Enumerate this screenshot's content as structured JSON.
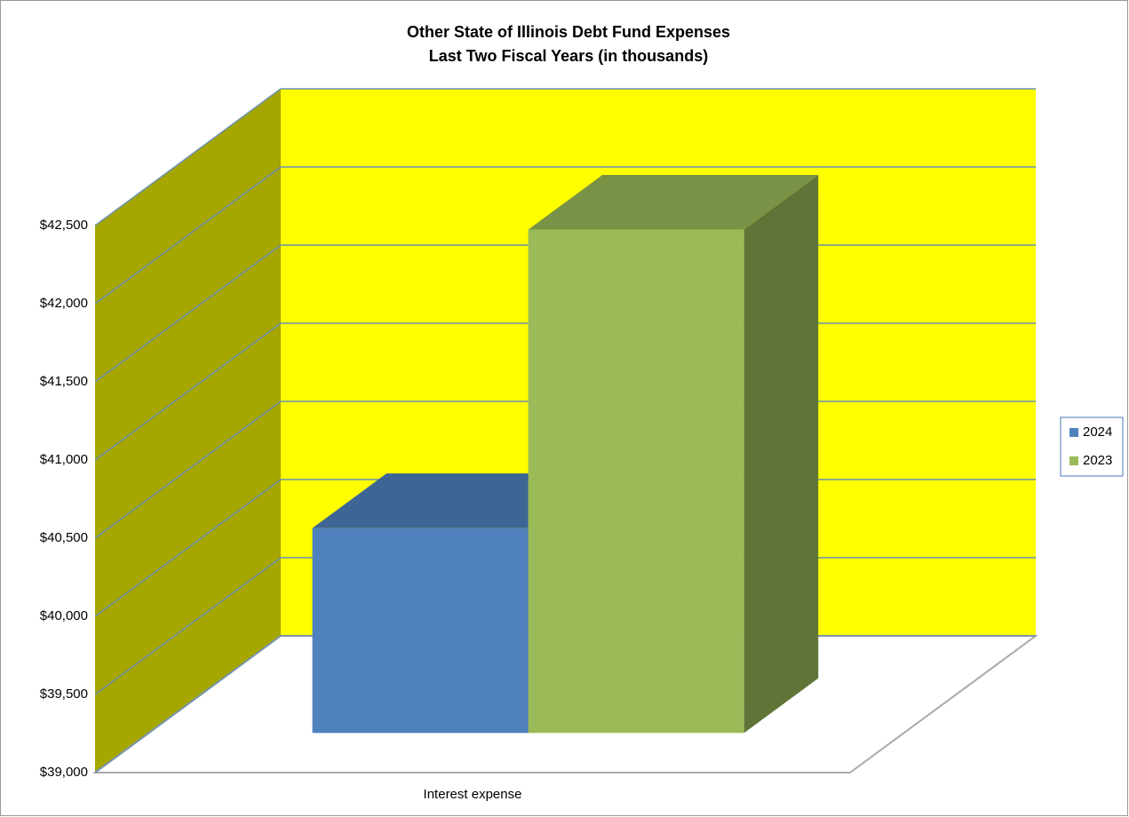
{
  "chart_data": {
    "type": "bar3d",
    "title": "Other State of Illinois Debt Fund Expenses",
    "subtitle": "Last Two Fiscal Years (in thousands)",
    "categories": [
      "Interest expense"
    ],
    "series": [
      {
        "name": "2024",
        "color": "#4f81bd",
        "values": [
          40310
        ]
      },
      {
        "name": "2023",
        "color": "#9bbb59",
        "values": [
          42220
        ]
      }
    ],
    "ylim": [
      39000,
      42500
    ],
    "yticks": [
      {
        "value": 39000,
        "label": "$39,000"
      },
      {
        "value": 39500,
        "label": "$39,500"
      },
      {
        "value": 40000,
        "label": "$40,000"
      },
      {
        "value": 40500,
        "label": "$40,500"
      },
      {
        "value": 41000,
        "label": "$41,000"
      },
      {
        "value": 41500,
        "label": "$41,500"
      },
      {
        "value": 42000,
        "label": "$42,000"
      },
      {
        "value": 42500,
        "label": "$42,500"
      }
    ],
    "grid": true,
    "legend": "right",
    "wall_color": "#ffff00",
    "side_wall_color": "#a6a600"
  }
}
